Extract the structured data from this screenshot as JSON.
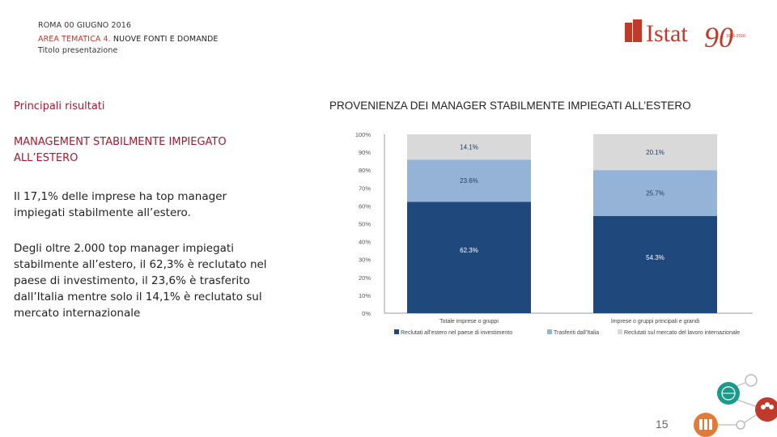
{
  "header": {
    "line1": "ROMA 00 GIUGNO 2016",
    "line2_red": "AREA TEMATICA 4.",
    "line2_black": " NUOVE FONTI E DOMANDE",
    "line3": "Titolo presentazione"
  },
  "logo": {
    "text": "Istat",
    "years": "90",
    "small": "1926-2016",
    "brand_color": "#c0392b"
  },
  "left": {
    "section_title": "Principali risultati",
    "management_title": "MANAGEMENT STABILMENTE IMPIEGATO ALL’ESTERO",
    "paragraph1": "Il 17,1% delle imprese ha top manager impiegati stabilmente all’estero.",
    "paragraph2": "Degli oltre 2.000 top manager impiegati stabilmente all’estero, il 62,3% è reclutato nel paese di investimento, il 23,6% è trasferito dall’Italia mentre solo il 14,1% è reclutato sul mercato internazionale"
  },
  "chart_title": "PROVENIENZA DEI MANAGER STABILMENTE IMPIEGATI ALL’ESTERO",
  "chart_data": {
    "type": "bar",
    "stacked": true,
    "categories": [
      "Totale imprese o gruppi",
      "Imprese o gruppi principali e grandi"
    ],
    "series": [
      {
        "name": "Reclutati all’estero nel paese di investimento",
        "values": [
          62.3,
          54.3
        ],
        "labels": [
          "62.3%",
          "54.3%"
        ],
        "color": "#1f497d"
      },
      {
        "name": "Trasferiti dall’Italia",
        "values": [
          23.6,
          25.7
        ],
        "labels": [
          "23.6%",
          "25.7%"
        ],
        "color": "#95b3d7"
      },
      {
        "name": "Reclutati sul mercato del lavoro internazionale",
        "values": [
          14.1,
          20.1
        ],
        "labels": [
          "14.1%",
          "20.1%"
        ],
        "color": "#d9d9d9"
      }
    ],
    "yticks": [
      "0%",
      "10%",
      "20%",
      "30%",
      "40%",
      "50%",
      "60%",
      "70%",
      "80%",
      "90%",
      "100%"
    ],
    "ylim": [
      0,
      100
    ],
    "legend_position": "bottom",
    "grid": false
  },
  "footer": {
    "page_number": "15"
  }
}
